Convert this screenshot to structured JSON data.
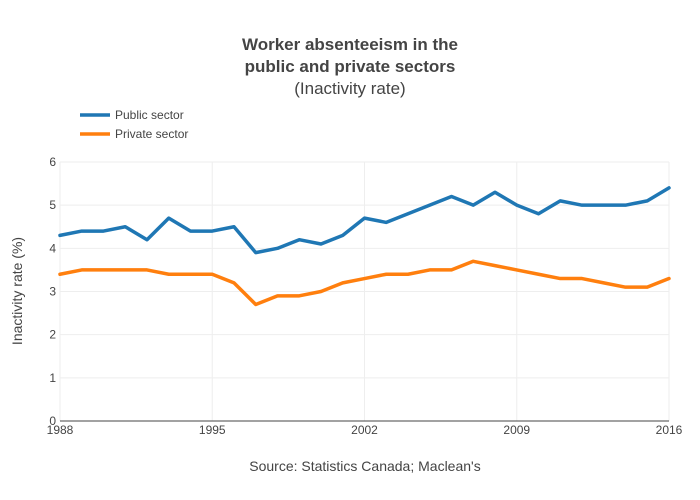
{
  "chart_data": {
    "type": "line",
    "title_lines": [
      "Worker absenteeism in the",
      "public and private sectors"
    ],
    "subtitle": "(Inactivity rate)",
    "xlabel": "",
    "ylabel": "Inactivity rate (%)",
    "source": "Source: Statistics Canada; Maclean's",
    "xlim": [
      1988,
      2016
    ],
    "ylim": [
      0,
      6
    ],
    "x_ticks": [
      1988,
      1995,
      2002,
      2009,
      2016
    ],
    "y_ticks": [
      0,
      1,
      2,
      3,
      4,
      5,
      6
    ],
    "legend_position": "top-left",
    "grid": true,
    "x": [
      1988,
      1989,
      1990,
      1991,
      1992,
      1993,
      1994,
      1995,
      1996,
      1997,
      1998,
      1999,
      2000,
      2001,
      2002,
      2003,
      2004,
      2005,
      2006,
      2007,
      2008,
      2009,
      2010,
      2011,
      2012,
      2013,
      2014,
      2015,
      2016
    ],
    "series": [
      {
        "name": "Public sector",
        "color": "#1f77b4",
        "values": [
          4.3,
          4.4,
          4.4,
          4.5,
          4.2,
          4.7,
          4.4,
          4.4,
          4.5,
          3.9,
          4.0,
          4.2,
          4.1,
          4.3,
          4.7,
          4.6,
          4.8,
          5.0,
          5.2,
          5.0,
          5.3,
          5.0,
          4.8,
          5.1,
          5.0,
          5.0,
          5.0,
          5.1,
          5.4
        ]
      },
      {
        "name": "Private sector",
        "color": "#ff7f0e",
        "values": [
          3.4,
          3.5,
          3.5,
          3.5,
          3.5,
          3.4,
          3.4,
          3.4,
          3.2,
          2.7,
          2.9,
          2.9,
          3.0,
          3.2,
          3.3,
          3.4,
          3.4,
          3.5,
          3.5,
          3.7,
          3.6,
          3.5,
          3.4,
          3.3,
          3.3,
          3.2,
          3.1,
          3.1,
          3.3
        ]
      }
    ]
  }
}
